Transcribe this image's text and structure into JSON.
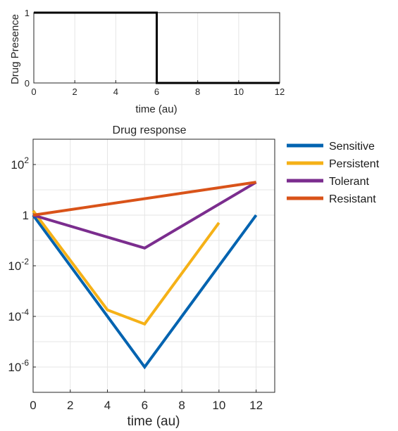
{
  "chart_data": [
    {
      "type": "line",
      "title": "",
      "xlabel": "time (au)",
      "ylabel": "Drug Presence",
      "xlim": [
        0,
        12
      ],
      "ylim": [
        0,
        1
      ],
      "xticks": [
        "0",
        "2",
        "4",
        "6",
        "8",
        "10",
        "12"
      ],
      "yticks": [
        "0",
        "1"
      ],
      "grid": true,
      "series": [
        {
          "color": "#000000",
          "x": [
            0,
            6,
            6,
            12
          ],
          "y": [
            1,
            1,
            0,
            0
          ]
        }
      ]
    },
    {
      "type": "line",
      "title": "Drug response",
      "xlabel": "time (au)",
      "ylabel": "",
      "yscale": "log",
      "xlim": [
        0,
        13
      ],
      "ylim": [
        1e-07,
        1000
      ],
      "xticks": [
        "0",
        "2",
        "4",
        "6",
        "8",
        "10",
        "12"
      ],
      "yticks": [
        {
          "base": "10",
          "exp": "2",
          "value": 100
        },
        {
          "base": "1",
          "exp": "",
          "value": 1
        },
        {
          "base": "10",
          "exp": "-2",
          "value": 0.01
        },
        {
          "base": "10",
          "exp": "-4",
          "value": 0.0001
        },
        {
          "base": "10",
          "exp": "-6",
          "value": 1e-06
        }
      ],
      "grid": true,
      "legend": "outside-right",
      "series": [
        {
          "name": "Sensitive",
          "color": "#0063b0",
          "x": [
            0,
            6,
            12
          ],
          "y": [
            1,
            1e-06,
            1
          ]
        },
        {
          "name": "Persistent",
          "color": "#f5b117",
          "x": [
            0,
            4,
            6,
            10
          ],
          "y": [
            1.5,
            0.00018,
            5e-05,
            0.5
          ]
        },
        {
          "name": "Tolerant",
          "color": "#7b2d8e",
          "x": [
            0,
            6,
            12
          ],
          "y": [
            1,
            0.05,
            20
          ]
        },
        {
          "name": "Resistant",
          "color": "#d95319",
          "x": [
            0,
            12
          ],
          "y": [
            1,
            20
          ]
        }
      ]
    }
  ]
}
